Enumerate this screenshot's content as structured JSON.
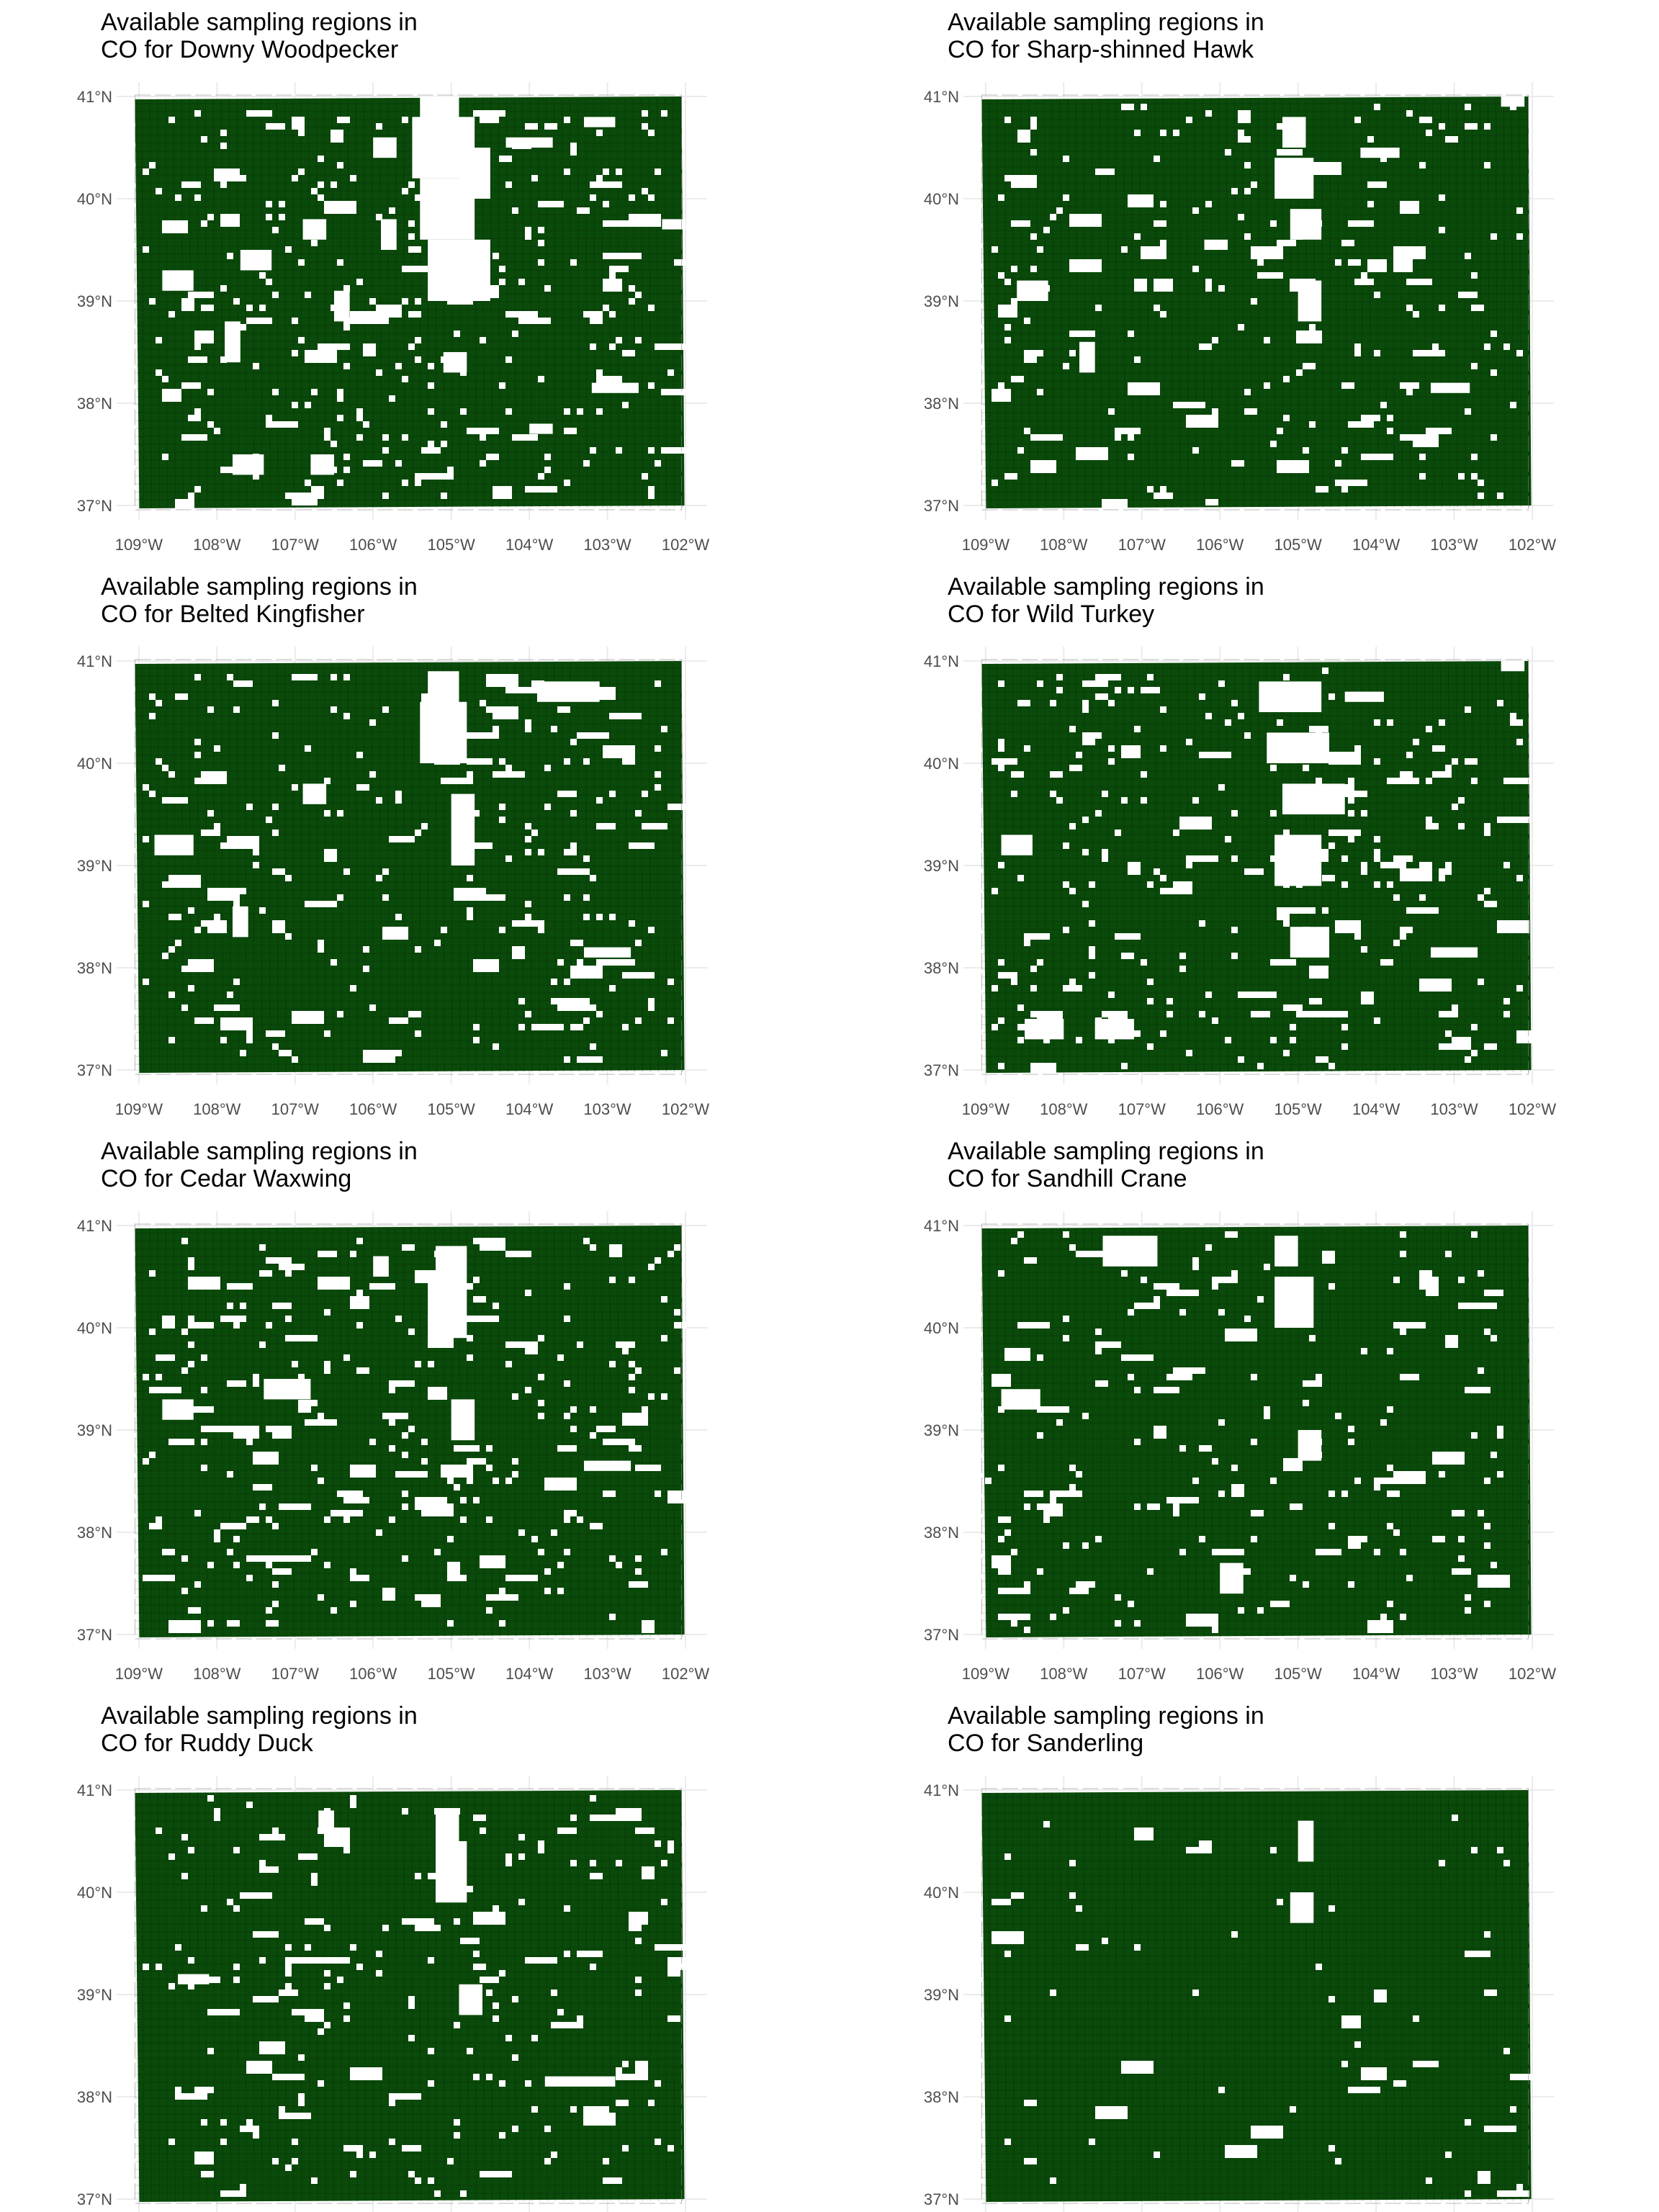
{
  "figure": {
    "type": "faceted-map",
    "fill_color": "#0a4a0a",
    "hole_color": "#ffffff",
    "grid_color": "#ebebeb",
    "tick_label_color": "#4d4d4d"
  },
  "chart_data": [
    {
      "type": "heatmap",
      "title_line1": "Available sampling regions in",
      "title_line2": "CO for Downy Woodpecker",
      "x_ticks": [
        "109°W",
        "108°W",
        "107°W",
        "106°W",
        "105°W",
        "104°W",
        "103°W",
        "102°W"
      ],
      "y_ticks": [
        "41°N",
        "40°N",
        "39°N",
        "38°N",
        "37°N"
      ],
      "xlim": [
        -109.1,
        -102.0
      ],
      "ylim": [
        37.0,
        41.0
      ],
      "gaps": [
        [
          -105.4,
          40.6,
          0.5,
          0.4
        ],
        [
          -105.5,
          40.2,
          0.8,
          0.6
        ],
        [
          -105.4,
          39.6,
          0.7,
          0.6
        ],
        [
          -105.3,
          39.0,
          0.8,
          0.6
        ],
        [
          -104.9,
          40.0,
          0.4,
          0.5
        ],
        [
          -105.9,
          39.5,
          0.2,
          0.3
        ],
        [
          -108.7,
          39.1,
          0.4,
          0.2
        ],
        [
          -107.7,
          39.3,
          0.4,
          0.2
        ],
        [
          -106.9,
          39.6,
          0.3,
          0.2
        ],
        [
          -107.9,
          38.4,
          0.2,
          0.4
        ],
        [
          -106.5,
          38.8,
          0.2,
          0.3
        ],
        [
          -105.1,
          38.3,
          0.3,
          0.2
        ],
        [
          -107.8,
          37.3,
          0.4,
          0.2
        ],
        [
          -106.8,
          37.3,
          0.3,
          0.2
        ],
        [
          -104.3,
          40.5,
          0.6,
          0.1
        ],
        [
          -103.2,
          38.1,
          0.6,
          0.1
        ],
        [
          -103.3,
          40.7,
          0.4,
          0.1
        ],
        [
          -106.0,
          40.4,
          0.3,
          0.2
        ],
        [
          -104.0,
          37.7,
          0.3,
          0.1
        ],
        [
          -102.3,
          39.7,
          0.3,
          0.1
        ]
      ],
      "speckle": {
        "count": 320,
        "seed": 11
      }
    },
    {
      "type": "heatmap",
      "title_line1": "Available sampling regions in",
      "title_line2": "CO for Sharp-shinned Hawk",
      "x_ticks": [
        "109°W",
        "108°W",
        "107°W",
        "106°W",
        "105°W",
        "104°W",
        "103°W",
        "102°W"
      ],
      "y_ticks": [
        "41°N",
        "40°N",
        "39°N",
        "38°N",
        "37°N"
      ],
      "xlim": [
        -109.1,
        -102.0
      ],
      "ylim": [
        37.0,
        41.0
      ],
      "gaps": [
        [
          -105.2,
          40.5,
          0.3,
          0.3
        ],
        [
          -105.3,
          40.0,
          0.5,
          0.4
        ],
        [
          -105.1,
          39.6,
          0.4,
          0.3
        ],
        [
          -105.0,
          38.8,
          0.3,
          0.4
        ],
        [
          -108.6,
          39.0,
          0.4,
          0.2
        ],
        [
          -107.8,
          38.3,
          0.2,
          0.3
        ],
        [
          -104.2,
          40.4,
          0.5,
          0.1
        ],
        [
          -102.4,
          40.9,
          0.3,
          0.1
        ],
        [
          -103.3,
          38.1,
          0.5,
          0.1
        ],
        [
          -106.2,
          39.5,
          0.3,
          0.1
        ]
      ],
      "speckle": {
        "count": 230,
        "seed": 23
      }
    },
    {
      "type": "heatmap",
      "title_line1": "Available sampling regions in",
      "title_line2": "CO for Belted Kingfisher",
      "x_ticks": [
        "109°W",
        "108°W",
        "107°W",
        "106°W",
        "105°W",
        "104°W",
        "103°W",
        "102°W"
      ],
      "y_ticks": [
        "41°N",
        "40°N",
        "39°N",
        "38°N",
        "37°N"
      ],
      "xlim": [
        -109.1,
        -102.0
      ],
      "ylim": [
        37.0,
        41.0
      ],
      "gaps": [
        [
          -105.3,
          40.5,
          0.4,
          0.4
        ],
        [
          -105.4,
          40.0,
          0.6,
          0.6
        ],
        [
          -105.0,
          39.0,
          0.3,
          0.7
        ],
        [
          -108.8,
          39.1,
          0.5,
          0.2
        ],
        [
          -103.9,
          40.6,
          0.8,
          0.2
        ],
        [
          -103.3,
          38.1,
          0.6,
          0.1
        ],
        [
          -106.9,
          39.6,
          0.3,
          0.2
        ],
        [
          -107.8,
          38.3,
          0.2,
          0.3
        ]
      ],
      "speckle": {
        "count": 280,
        "seed": 37
      }
    },
    {
      "type": "heatmap",
      "title_line1": "Available sampling regions in",
      "title_line2": "CO for Wild Turkey",
      "x_ticks": [
        "109°W",
        "108°W",
        "107°W",
        "106°W",
        "105°W",
        "104°W",
        "103°W",
        "102°W"
      ],
      "y_ticks": [
        "41°N",
        "40°N",
        "39°N",
        "38°N",
        "37°N"
      ],
      "xlim": [
        -109.1,
        -102.0
      ],
      "ylim": [
        37.0,
        41.0
      ],
      "gaps": [
        [
          -105.5,
          40.5,
          0.8,
          0.3
        ],
        [
          -105.4,
          40.0,
          0.8,
          0.3
        ],
        [
          -105.2,
          39.5,
          0.8,
          0.3
        ],
        [
          -105.3,
          38.8,
          0.6,
          0.5
        ],
        [
          -105.1,
          38.1,
          0.5,
          0.3
        ],
        [
          -108.8,
          39.1,
          0.4,
          0.2
        ],
        [
          -108.5,
          37.3,
          0.5,
          0.2
        ],
        [
          -107.6,
          37.3,
          0.5,
          0.2
        ],
        [
          -104.4,
          40.6,
          0.5,
          0.1
        ],
        [
          -103.3,
          38.1,
          0.6,
          0.1
        ],
        [
          -102.4,
          40.9,
          0.3,
          0.1
        ]
      ],
      "speckle": {
        "count": 300,
        "seed": 41
      }
    },
    {
      "type": "heatmap",
      "title_line1": "Available sampling regions in",
      "title_line2": "CO for Cedar Waxwing",
      "x_ticks": [
        "109°W",
        "108°W",
        "107°W",
        "106°W",
        "105°W",
        "104°W",
        "103°W",
        "102°W"
      ],
      "y_ticks": [
        "41°N",
        "40°N",
        "39°N",
        "38°N",
        "37°N"
      ],
      "xlim": [
        -109.1,
        -102.0
      ],
      "ylim": [
        37.0,
        41.0
      ],
      "gaps": [
        [
          -105.2,
          40.5,
          0.4,
          0.3
        ],
        [
          -105.3,
          39.9,
          0.5,
          0.6
        ],
        [
          -105.0,
          38.9,
          0.3,
          0.4
        ],
        [
          -108.7,
          39.1,
          0.4,
          0.2
        ],
        [
          -107.4,
          39.3,
          0.6,
          0.2
        ],
        [
          -103.3,
          38.6,
          0.6,
          0.1
        ],
        [
          -106.0,
          40.5,
          0.2,
          0.2
        ]
      ],
      "speckle": {
        "count": 300,
        "seed": 53
      }
    },
    {
      "type": "heatmap",
      "title_line1": "Available sampling regions in",
      "title_line2": "CO for Sandhill Crane",
      "x_ticks": [
        "109°W",
        "108°W",
        "107°W",
        "106°W",
        "105°W",
        "104°W",
        "103°W",
        "102°W"
      ],
      "y_ticks": [
        "41°N",
        "40°N",
        "39°N",
        "38°N",
        "37°N"
      ],
      "xlim": [
        -109.1,
        -102.0
      ],
      "ylim": [
        37.0,
        41.0
      ],
      "gaps": [
        [
          -105.3,
          40.6,
          0.3,
          0.3
        ],
        [
          -105.3,
          40.0,
          0.5,
          0.5
        ],
        [
          -107.5,
          40.6,
          0.7,
          0.3
        ],
        [
          -108.8,
          39.2,
          0.5,
          0.2
        ],
        [
          -106.0,
          37.4,
          0.3,
          0.3
        ],
        [
          -105.0,
          38.7,
          0.3,
          0.3
        ]
      ],
      "speckle": {
        "count": 220,
        "seed": 67
      }
    },
    {
      "type": "heatmap",
      "title_line1": "Available sampling regions in",
      "title_line2": "CO for Ruddy Duck",
      "x_ticks": [
        "109°W",
        "108°W",
        "107°W",
        "106°W",
        "105°W",
        "104°W",
        "103°W",
        "102°W"
      ],
      "y_ticks": [
        "41°N",
        "40°N",
        "39°N",
        "38°N",
        "37°N"
      ],
      "xlim": [
        -109.1,
        -102.0
      ],
      "ylim": [
        37.0,
        41.0
      ],
      "gaps": [
        [
          -105.2,
          40.5,
          0.3,
          0.3
        ],
        [
          -105.2,
          39.9,
          0.4,
          0.6
        ],
        [
          -104.9,
          38.8,
          0.3,
          0.3
        ],
        [
          -103.8,
          38.1,
          0.9,
          0.1
        ],
        [
          -106.7,
          40.6,
          0.2,
          0.2
        ],
        [
          -108.5,
          39.1,
          0.4,
          0.1
        ]
      ],
      "speckle": {
        "count": 230,
        "seed": 79
      }
    },
    {
      "type": "heatmap",
      "title_line1": "Available sampling regions in",
      "title_line2": "CO for Sanderling",
      "x_ticks": [
        "109°W",
        "108°W",
        "107°W",
        "106°W",
        "105°W",
        "104°W",
        "103°W",
        "102°W"
      ],
      "y_ticks": [
        "41°N",
        "40°N",
        "39°N",
        "38°N",
        "37°N"
      ],
      "xlim": [
        -109.1,
        -102.0
      ],
      "ylim": [
        37.0,
        41.0
      ],
      "gaps": [
        [
          -105.0,
          40.3,
          0.2,
          0.4
        ],
        [
          -105.1,
          39.7,
          0.3,
          0.3
        ]
      ],
      "speckle": {
        "count": 70,
        "seed": 97
      }
    }
  ]
}
